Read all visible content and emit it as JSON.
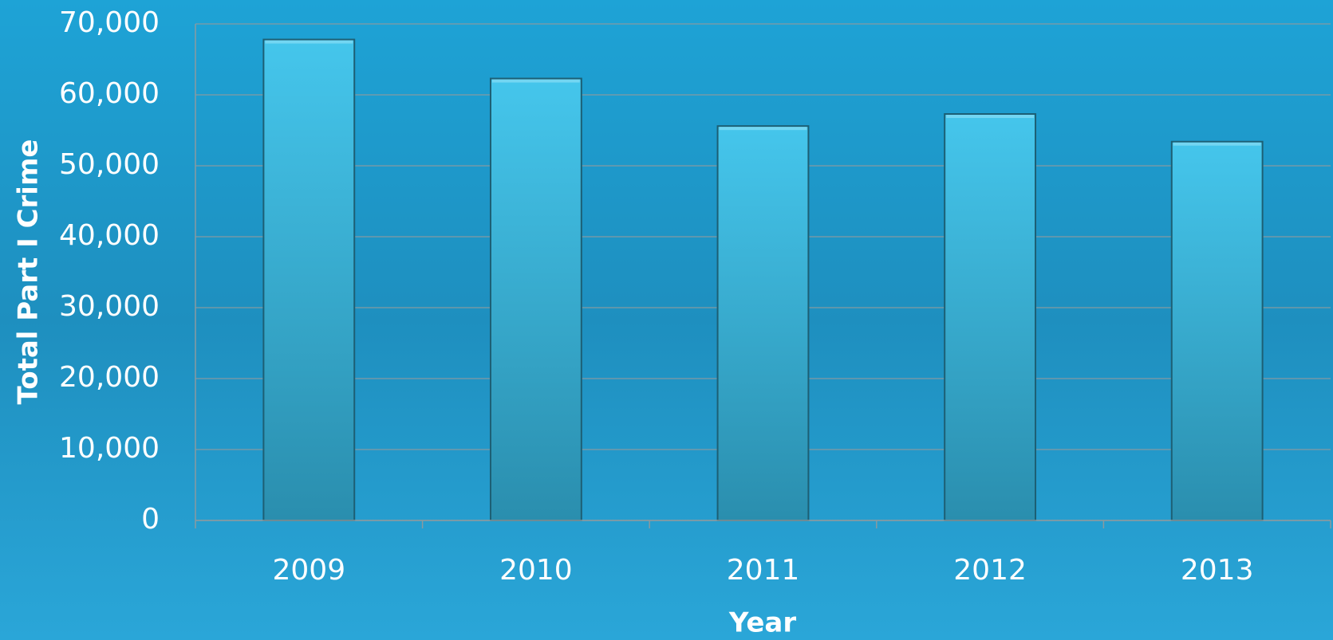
{
  "chart_data": {
    "type": "bar",
    "categories": [
      "2009",
      "2010",
      "2011",
      "2012",
      "2013"
    ],
    "values": [
      67800,
      62300,
      55600,
      57300,
      53400
    ],
    "color": "#3cbde3",
    "xlabel": "Year",
    "ylabel": "Total Part I Crime",
    "ylim": [
      0,
      70000
    ],
    "yticks": [
      0,
      {
        "value": 10000,
        "label": "10,000"
      },
      {
        "value": 20000,
        "label": "20,000"
      },
      {
        "value": 30000,
        "label": "30,000"
      },
      {
        "value": 40000,
        "label": "40,000"
      },
      {
        "value": 50000,
        "label": "50,000"
      },
      {
        "value": 60000,
        "label": "60,000"
      },
      {
        "value": 70000,
        "label": "70,000"
      }
    ],
    "grid": true
  }
}
